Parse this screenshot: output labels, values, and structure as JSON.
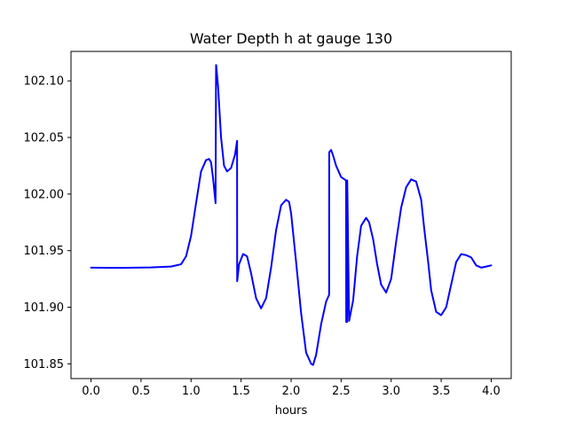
{
  "chart_data": {
    "type": "line",
    "title": "Water Depth h at gauge 130",
    "xlabel": "hours",
    "ylabel": "",
    "xlim": [
      -0.2,
      4.2
    ],
    "ylim": [
      101.837,
      102.126
    ],
    "xticks": [
      0.0,
      0.5,
      1.0,
      1.5,
      2.0,
      2.5,
      3.0,
      3.5,
      4.0
    ],
    "xtick_labels": [
      "0.0",
      "0.5",
      "1.0",
      "1.5",
      "2.0",
      "2.5",
      "3.0",
      "3.5",
      "4.0"
    ],
    "yticks": [
      101.85,
      101.9,
      101.95,
      102.0,
      102.05,
      102.1
    ],
    "ytick_labels": [
      "101.85",
      "101.90",
      "101.95",
      "102.00",
      "102.05",
      "102.10"
    ],
    "grid": false,
    "series": [
      {
        "name": "",
        "color": "#0000ff",
        "x": [
          0.0,
          0.3,
          0.6,
          0.8,
          0.9,
          0.95,
          1.0,
          1.05,
          1.1,
          1.15,
          1.18,
          1.2,
          1.22,
          1.245,
          1.25,
          1.251,
          1.27,
          1.3,
          1.33,
          1.36,
          1.4,
          1.44,
          1.46,
          1.461,
          1.48,
          1.52,
          1.56,
          1.6,
          1.65,
          1.7,
          1.75,
          1.8,
          1.85,
          1.9,
          1.95,
          1.98,
          2.0,
          2.05,
          2.1,
          2.15,
          2.2,
          2.22,
          2.25,
          2.3,
          2.35,
          2.38,
          2.381,
          2.4,
          2.42,
          2.45,
          2.5,
          2.55,
          2.551,
          2.56,
          2.561,
          2.58,
          2.62,
          2.66,
          2.7,
          2.75,
          2.78,
          2.82,
          2.86,
          2.9,
          2.95,
          3.0,
          3.05,
          3.1,
          3.15,
          3.2,
          3.25,
          3.3,
          3.33,
          3.37,
          3.4,
          3.45,
          3.5,
          3.55,
          3.6,
          3.65,
          3.7,
          3.75,
          3.8,
          3.85,
          3.9,
          3.95,
          4.0
        ],
        "y": [
          101.935,
          101.9348,
          101.9352,
          101.936,
          101.938,
          101.945,
          101.963,
          101.992,
          102.02,
          102.03,
          102.031,
          102.028,
          102.014,
          101.992,
          102.114,
          102.114,
          102.095,
          102.05,
          102.025,
          102.02,
          102.023,
          102.035,
          102.047,
          101.923,
          101.938,
          101.947,
          101.945,
          101.93,
          101.908,
          101.899,
          101.908,
          101.935,
          101.968,
          101.99,
          101.995,
          101.993,
          101.983,
          101.94,
          101.895,
          101.86,
          101.85,
          101.849,
          101.858,
          101.885,
          101.905,
          101.911,
          102.037,
          102.039,
          102.034,
          102.025,
          102.015,
          102.012,
          101.887,
          101.887,
          102.012,
          101.888,
          101.906,
          101.945,
          101.972,
          101.979,
          101.975,
          101.96,
          101.938,
          101.92,
          101.913,
          101.925,
          101.958,
          101.988,
          102.006,
          102.013,
          102.011,
          101.995,
          101.97,
          101.94,
          101.915,
          101.896,
          101.893,
          101.9,
          101.92,
          101.94,
          101.947,
          101.946,
          101.944,
          101.937,
          101.935,
          101.936,
          101.937
        ]
      }
    ]
  }
}
